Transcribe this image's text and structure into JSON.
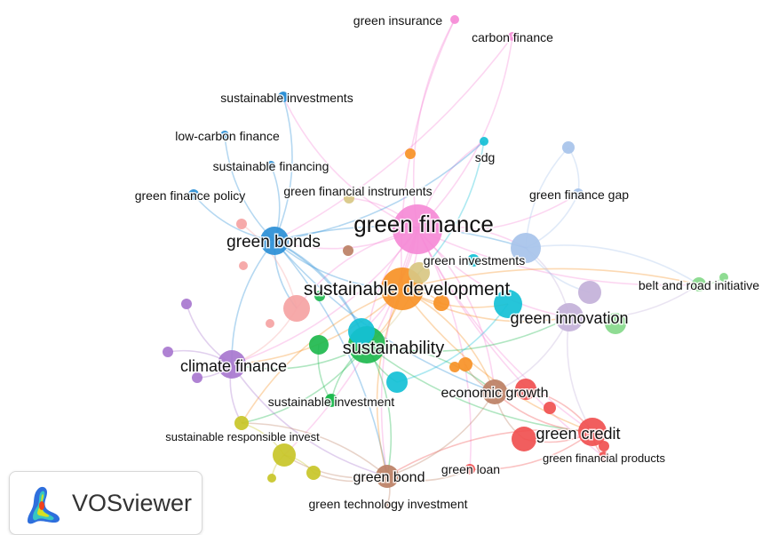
{
  "logo": {
    "text": "VOSviewer"
  },
  "cluster_colors": {
    "red": "#f05050",
    "green": "#1eb84e",
    "blue": "#2b8fd6",
    "yellow": "#c8c628",
    "purple": "#a877cf",
    "cyan": "#13c0d6",
    "orange": "#f79126",
    "brown": "#bc8065",
    "pink": "#f58ad6",
    "salmon": "#f5a3a3",
    "light_green": "#85d98a",
    "light_blue": "#a7c3ea",
    "lavender": "#c3b1d9",
    "khaki": "#d8c783"
  },
  "items": [
    {
      "id": "green-finance",
      "label": "green finance",
      "cluster": "pink",
      "weight": 28
    },
    {
      "id": "sustainable-development",
      "label": "sustainable development",
      "cluster": "orange",
      "weight": 24
    },
    {
      "id": "sustainability",
      "label": "sustainability",
      "cluster": "green",
      "weight": 21
    },
    {
      "id": "green-bonds",
      "label": "green bonds",
      "cluster": "blue",
      "weight": 16
    },
    {
      "id": "green-innovation",
      "label": "green innovation",
      "cluster": "lavender",
      "weight": 16
    },
    {
      "id": "climate-finance",
      "label": "climate finance",
      "cluster": "purple",
      "weight": 16
    },
    {
      "id": "green-credit",
      "label": "green credit",
      "cluster": "red",
      "weight": 16
    },
    {
      "id": "economic-growth",
      "label": "economic growth",
      "cluster": "brown",
      "weight": 14
    },
    {
      "id": "green-bond",
      "label": "green bond",
      "cluster": "brown",
      "weight": 13
    },
    {
      "id": "green-investments",
      "label": "green investments",
      "cluster": "light_blue",
      "weight": 17
    },
    {
      "id": "belt-and-road-initiative",
      "label": "belt and road initiative",
      "cluster": "light_green",
      "weight": 8
    },
    {
      "id": "sustainable-investment",
      "label": "sustainable investment",
      "cluster": "green",
      "weight": 7
    },
    {
      "id": "sustainable-responsible-invest",
      "label": "sustainable responsible invest",
      "cluster": "yellow",
      "weight": 8
    },
    {
      "id": "green-loan",
      "label": "green loan",
      "cluster": "red",
      "weight": 6
    },
    {
      "id": "green-financial-products",
      "label": "green financial products",
      "cluster": "red",
      "weight": 6
    },
    {
      "id": "green-technology-investment",
      "label": "green technology investment",
      "cluster": "brown",
      "weight": 5
    },
    {
      "id": "green-insurance",
      "label": "green insurance",
      "cluster": "pink",
      "weight": 5
    },
    {
      "id": "carbon-finance",
      "label": "carbon finance",
      "cluster": "pink",
      "weight": 5
    },
    {
      "id": "sustainable-investments",
      "label": "sustainable investments",
      "cluster": "blue",
      "weight": 6
    },
    {
      "id": "low-carbon-finance",
      "label": "low-carbon finance",
      "cluster": "blue",
      "weight": 5
    },
    {
      "id": "sustainable-financing",
      "label": "sustainable financing",
      "cluster": "blue",
      "weight": 5
    },
    {
      "id": "green-finance-policy",
      "label": "green finance policy",
      "cluster": "blue",
      "weight": 6
    },
    {
      "id": "green-financial-instruments",
      "label": "green financial instruments",
      "cluster": "khaki",
      "weight": 6
    },
    {
      "id": "sdg",
      "label": "sdg",
      "cluster": "cyan",
      "weight": 5
    },
    {
      "id": "green-finance-gap",
      "label": "green finance gap",
      "cluster": "light_blue",
      "weight": 6
    },
    {
      "id": "n-cyan-1",
      "label": "",
      "cluster": "cyan",
      "weight": 15
    },
    {
      "id": "n-cyan-2",
      "label": "",
      "cluster": "cyan",
      "weight": 16
    },
    {
      "id": "n-cyan-3",
      "label": "",
      "cluster": "cyan",
      "weight": 12
    },
    {
      "id": "n-cyan-4",
      "label": "",
      "cluster": "cyan",
      "weight": 7
    },
    {
      "id": "n-salmon-1",
      "label": "",
      "cluster": "salmon",
      "weight": 15
    },
    {
      "id": "n-salmon-2",
      "label": "",
      "cluster": "salmon",
      "weight": 6
    },
    {
      "id": "n-salmon-3",
      "label": "",
      "cluster": "salmon",
      "weight": 5
    },
    {
      "id": "n-salmon-4",
      "label": "",
      "cluster": "salmon",
      "weight": 5
    },
    {
      "id": "n-green-1",
      "label": "",
      "cluster": "green",
      "weight": 11
    },
    {
      "id": "n-green-2",
      "label": "",
      "cluster": "green",
      "weight": 6
    },
    {
      "id": "n-green-3",
      "label": "",
      "cluster": "green",
      "weight": 7
    },
    {
      "id": "n-orange-1",
      "label": "",
      "cluster": "orange",
      "weight": 9
    },
    {
      "id": "n-orange-2",
      "label": "",
      "cluster": "orange",
      "weight": 8
    },
    {
      "id": "n-orange-3",
      "label": "",
      "cluster": "orange",
      "weight": 6
    },
    {
      "id": "n-orange-4",
      "label": "",
      "cluster": "orange",
      "weight": 6
    },
    {
      "id": "n-purple-1",
      "label": "",
      "cluster": "purple",
      "weight": 6
    },
    {
      "id": "n-purple-2",
      "label": "",
      "cluster": "purple",
      "weight": 6
    },
    {
      "id": "n-purple-3",
      "label": "",
      "cluster": "purple",
      "weight": 6
    },
    {
      "id": "n-lavender-1",
      "label": "",
      "cluster": "lavender",
      "weight": 13
    },
    {
      "id": "n-lightblue-1",
      "label": "",
      "cluster": "light_blue",
      "weight": 7
    },
    {
      "id": "n-lightgreen-1",
      "label": "",
      "cluster": "light_green",
      "weight": 12
    },
    {
      "id": "n-lightgreen-2",
      "label": "",
      "cluster": "light_green",
      "weight": 5
    },
    {
      "id": "n-khaki-1",
      "label": "",
      "cluster": "khaki",
      "weight": 12
    },
    {
      "id": "n-yellow-1",
      "label": "",
      "cluster": "yellow",
      "weight": 13
    },
    {
      "id": "n-yellow-2",
      "label": "",
      "cluster": "yellow",
      "weight": 8
    },
    {
      "id": "n-yellow-3",
      "label": "",
      "cluster": "yellow",
      "weight": 5
    },
    {
      "id": "n-red-1",
      "label": "",
      "cluster": "red",
      "weight": 14
    },
    {
      "id": "n-red-2",
      "label": "",
      "cluster": "red",
      "weight": 12
    },
    {
      "id": "n-red-3",
      "label": "",
      "cluster": "red",
      "weight": 7
    },
    {
      "id": "n-red-4",
      "label": "",
      "cluster": "red",
      "weight": 6
    },
    {
      "id": "n-brown-1",
      "label": "",
      "cluster": "brown",
      "weight": 6
    },
    {
      "id": "n-blue-1",
      "label": "",
      "cluster": "blue",
      "weight": 5
    }
  ],
  "links": [
    [
      "green-finance",
      "sustainable-development"
    ],
    [
      "green-finance",
      "sustainability"
    ],
    [
      "green-finance",
      "green-bonds"
    ],
    [
      "green-finance",
      "green-innovation"
    ],
    [
      "green-finance",
      "climate-finance"
    ],
    [
      "green-finance",
      "green-credit"
    ],
    [
      "green-finance",
      "economic-growth"
    ],
    [
      "green-finance",
      "green-bond"
    ],
    [
      "green-finance",
      "green-investments"
    ],
    [
      "green-finance",
      "belt-and-road-initiative"
    ],
    [
      "green-finance",
      "green-insurance"
    ],
    [
      "green-finance",
      "carbon-finance"
    ],
    [
      "green-finance",
      "sdg"
    ],
    [
      "green-finance",
      "green-finance-gap"
    ],
    [
      "green-finance",
      "sustainable-investments"
    ],
    [
      "green-finance",
      "green-financial-instruments"
    ],
    [
      "green-finance",
      "n-cyan-1"
    ],
    [
      "green-finance",
      "n-salmon-1"
    ],
    [
      "green-finance",
      "green-loan"
    ],
    [
      "green-finance",
      "green-financial-products"
    ],
    [
      "green-finance",
      "n-yellow-1"
    ],
    [
      "green-bonds",
      "sustainable-investments"
    ],
    [
      "green-bonds",
      "low-carbon-finance"
    ],
    [
      "green-bonds",
      "sustainable-financing"
    ],
    [
      "green-bonds",
      "green-finance-policy"
    ],
    [
      "green-bonds",
      "climate-finance"
    ],
    [
      "green-bonds",
      "sustainability"
    ],
    [
      "green-bonds",
      "sustainable-development"
    ],
    [
      "green-bonds",
      "n-cyan-1"
    ],
    [
      "green-bonds",
      "n-salmon-1"
    ],
    [
      "green-bonds",
      "green-investments"
    ],
    [
      "green-bonds",
      "sdg"
    ],
    [
      "green-bonds",
      "green-bond"
    ],
    [
      "green-bonds",
      "economic-growth"
    ],
    [
      "sustainable-development",
      "sustainability"
    ],
    [
      "sustainable-development",
      "green-innovation"
    ],
    [
      "sustainable-development",
      "economic-growth"
    ],
    [
      "sustainable-development",
      "green-credit"
    ],
    [
      "sustainable-development",
      "climate-finance"
    ],
    [
      "sustainable-development",
      "green-bond"
    ],
    [
      "sustainable-development",
      "belt-and-road-initiative"
    ],
    [
      "sustainable-development",
      "n-cyan-2"
    ],
    [
      "sustainable-development",
      "n-orange-1"
    ],
    [
      "sustainable-development",
      "sustainable-responsible-invest"
    ],
    [
      "sustainability",
      "climate-finance"
    ],
    [
      "sustainability",
      "sustainable-investment"
    ],
    [
      "sustainability",
      "green-bond"
    ],
    [
      "sustainability",
      "green-credit"
    ],
    [
      "sustainability",
      "economic-growth"
    ],
    [
      "sustainability",
      "green-innovation"
    ],
    [
      "sustainability",
      "n-cyan-1"
    ],
    [
      "sustainability",
      "n-cyan-3"
    ],
    [
      "sustainability",
      "sustainable-responsible-invest"
    ],
    [
      "green-innovation",
      "green-credit"
    ],
    [
      "green-innovation",
      "economic-growth"
    ],
    [
      "green-innovation",
      "belt-and-road-initiative"
    ],
    [
      "green-innovation",
      "n-lightgreen-1"
    ],
    [
      "green-innovation",
      "green-investments"
    ],
    [
      "green-credit",
      "economic-growth"
    ],
    [
      "green-credit",
      "green-financial-products"
    ],
    [
      "green-credit",
      "green-loan"
    ],
    [
      "green-credit",
      "green-bond"
    ],
    [
      "green-credit",
      "n-red-1"
    ],
    [
      "green-credit",
      "n-red-2"
    ],
    [
      "economic-growth",
      "green-bond"
    ],
    [
      "economic-growth",
      "n-red-1"
    ],
    [
      "economic-growth",
      "n-orange-2"
    ],
    [
      "climate-finance",
      "sustainable-responsible-invest"
    ],
    [
      "climate-finance",
      "n-purple-1"
    ],
    [
      "climate-finance",
      "n-purple-2"
    ],
    [
      "climate-finance",
      "n-purple-3"
    ],
    [
      "climate-finance",
      "green-bond"
    ],
    [
      "green-bond",
      "green-technology-investment"
    ],
    [
      "green-bond",
      "green-loan"
    ],
    [
      "green-bond",
      "n-yellow-1"
    ],
    [
      "green-bond",
      "sustainable-responsible-invest"
    ],
    [
      "green-bond",
      "n-yellow-2"
    ],
    [
      "green-investments",
      "green-finance-gap"
    ],
    [
      "green-investments",
      "belt-and-road-initiative"
    ],
    [
      "green-investments",
      "n-lavender-1"
    ],
    [
      "green-investments",
      "n-lightblue-1"
    ],
    [
      "n-yellow-1",
      "sustainable-responsible-invest"
    ],
    [
      "n-yellow-1",
      "n-yellow-2"
    ],
    [
      "n-yellow-1",
      "n-yellow-3"
    ],
    [
      "n-salmon-1",
      "climate-finance"
    ],
    [
      "n-salmon-1",
      "n-salmon-2"
    ],
    [
      "n-cyan-2",
      "n-cyan-3"
    ],
    [
      "n-khaki-1",
      "sustainable-development"
    ],
    [
      "n-khaki-1",
      "sustainability"
    ],
    [
      "green-insurance",
      "sustainable-development"
    ],
    [
      "carbon-finance",
      "green-bonds"
    ],
    [
      "belt-and-road-initiative",
      "n-lightgreen-2"
    ],
    [
      "sdg",
      "sustainable-development"
    ],
    [
      "green-finance-gap",
      "n-lightblue-1"
    ],
    [
      "sustainable-investment",
      "n-green-1"
    ],
    [
      "sustainable-investment",
      "n-green-3"
    ]
  ]
}
